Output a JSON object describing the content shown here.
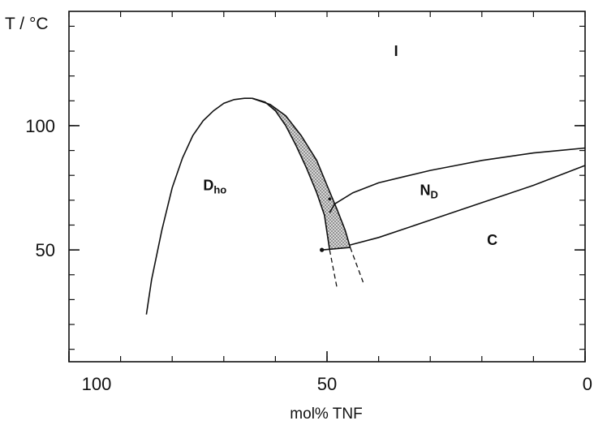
{
  "chart_data": {
    "type": "line",
    "title": "",
    "ylabel": "T / °C",
    "xlabel": "mol% TNF",
    "xlim": [
      100,
      0
    ],
    "ylim": [
      5,
      146
    ],
    "x_ticks": [
      {
        "value": 100,
        "label": "100"
      },
      {
        "value": 50,
        "label": "50"
      },
      {
        "value": 0,
        "label": "0"
      }
    ],
    "y_ticks": [
      {
        "value": 50,
        "label": "50"
      },
      {
        "value": 100,
        "label": "100"
      }
    ],
    "x_minor_step": 10,
    "y_minor_step": 10,
    "regions": [
      {
        "name": "I",
        "label": "I",
        "sub": "",
        "x": 37,
        "y": 128
      },
      {
        "name": "D_ho",
        "label": "D",
        "sub": "ho",
        "x": 74,
        "y": 74
      },
      {
        "name": "N_D",
        "label": "N",
        "sub": "D",
        "x": 32,
        "y": 72
      },
      {
        "name": "C",
        "label": "C",
        "sub": "",
        "x": 19,
        "y": 52
      }
    ],
    "series": [
      {
        "id": "dho-boundary-left",
        "style": "solid",
        "x": [
          85,
          84,
          82,
          80,
          78,
          76,
          74,
          72,
          70,
          68,
          66,
          64.5
        ],
        "y": [
          24,
          38,
          58,
          75,
          87,
          96,
          102,
          106,
          109,
          110.5,
          111,
          111
        ]
      },
      {
        "id": "dho-boundary-right",
        "style": "solid",
        "x": [
          64.5,
          62,
          60,
          58,
          56,
          54,
          52,
          50.5,
          49.5
        ],
        "y": [
          111,
          109.5,
          106,
          100,
          92,
          83,
          73,
          64,
          50
        ]
      },
      {
        "id": "biphasic-boundary",
        "style": "solid",
        "x": [
          64.5,
          61,
          58,
          55,
          52,
          50,
          48,
          46.5,
          45.5
        ],
        "y": [
          111,
          108.5,
          104,
          96,
          86,
          76,
          66,
          58,
          51
        ]
      },
      {
        "id": "nd-isotropic-boundary",
        "style": "solid",
        "x": [
          48.5,
          45,
          40,
          35,
          30,
          25,
          20,
          15,
          10,
          5,
          0
        ],
        "y": [
          68.5,
          73,
          77,
          79.5,
          82,
          84,
          86,
          87.5,
          89,
          90,
          91
        ]
      },
      {
        "id": "nd-crystal-boundary",
        "style": "solid",
        "x": [
          45.5,
          40,
          35,
          30,
          25,
          20,
          15,
          10,
          5,
          0
        ],
        "y": [
          52,
          55,
          58.5,
          62,
          65.5,
          69,
          72.5,
          76,
          80,
          84
        ]
      },
      {
        "id": "nd-left-boundary",
        "style": "solid",
        "x": [
          48.5,
          49.5
        ],
        "y": [
          68.5,
          65
        ]
      },
      {
        "id": "eutectic-line",
        "style": "solid",
        "x": [
          50.8,
          45.5
        ],
        "y": [
          50,
          51
        ]
      },
      {
        "id": "dashed-extension-1",
        "style": "dashed",
        "x": [
          49.5,
          48
        ],
        "y": [
          50,
          34
        ]
      },
      {
        "id": "dashed-extension-2",
        "style": "dashed",
        "x": [
          45.5,
          43
        ],
        "y": [
          51,
          37
        ]
      }
    ],
    "biphasic_region": {
      "x": [
        64.5,
        62,
        60,
        58,
        56,
        54,
        52,
        50.5,
        49.5,
        45.5,
        46.5,
        48,
        50,
        52,
        55,
        58,
        61
      ],
      "y": [
        111,
        109.5,
        106,
        100,
        92,
        83,
        73,
        64,
        50,
        51,
        58,
        66,
        76,
        86,
        96,
        104,
        108.5
      ]
    },
    "points": [
      {
        "id": "eutectic-point",
        "x": 51,
        "y": 50
      },
      {
        "id": "triple-point",
        "x": 49.5,
        "y": 70.5
      }
    ],
    "grid": false,
    "legend": "none",
    "colors": {
      "line": "#111111",
      "hatch": "#555555",
      "background": "#ffffff"
    }
  }
}
